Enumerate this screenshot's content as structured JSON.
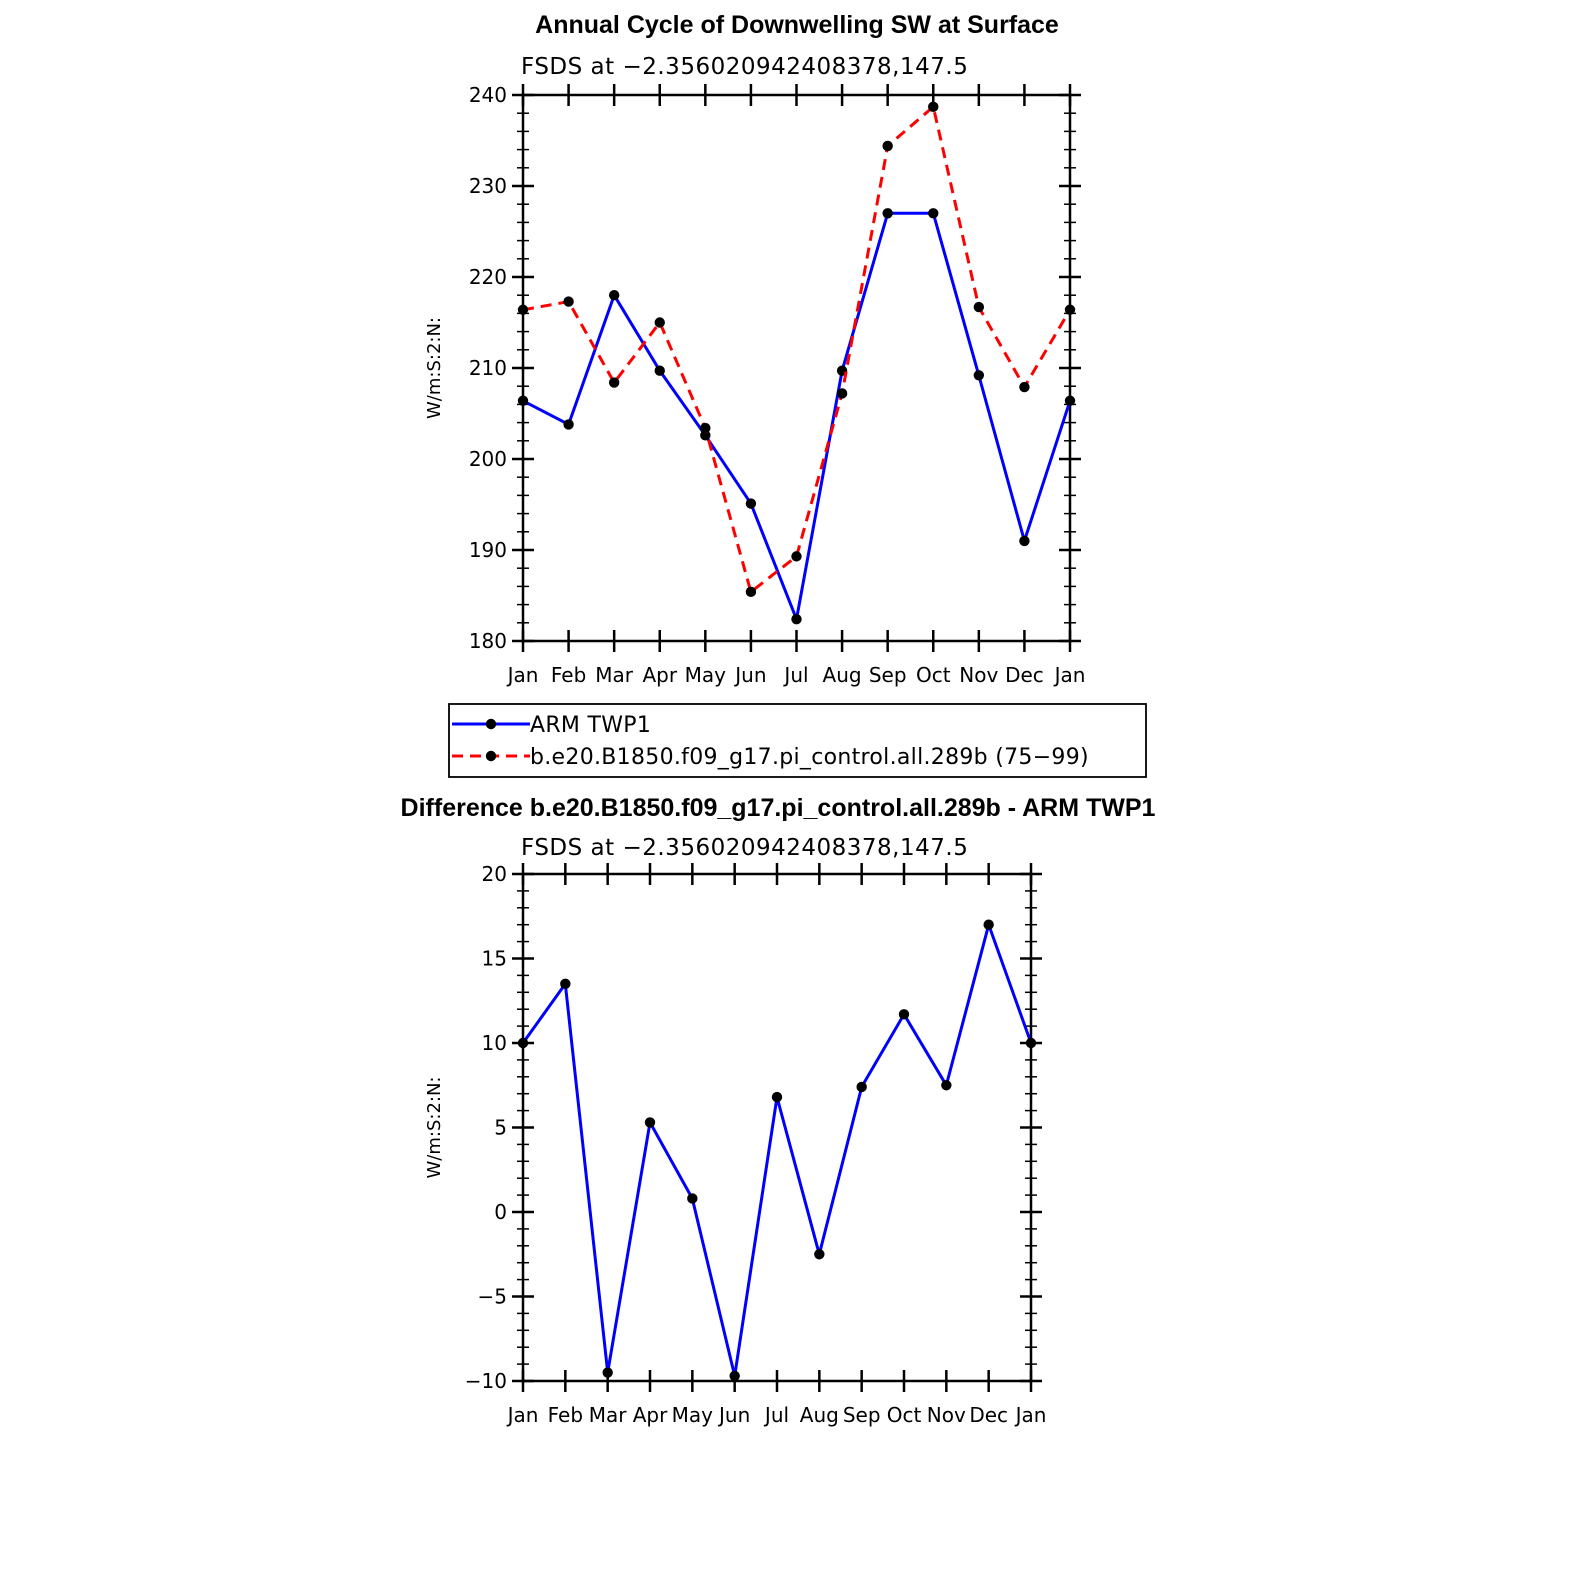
{
  "chart_data": [
    {
      "type": "line",
      "title": "Annual Cycle of Downwelling SW at Surface",
      "subtitle": "FSDS at −2.356020942408378,147.5",
      "xlabel": "",
      "ylabel": "W/m:S:2:N:",
      "categories": [
        "Jan",
        "Feb",
        "Mar",
        "Apr",
        "May",
        "Jun",
        "Jul",
        "Aug",
        "Sep",
        "Oct",
        "Nov",
        "Dec",
        "Jan"
      ],
      "ylim": [
        180,
        240
      ],
      "yticks": [
        180,
        190,
        200,
        210,
        220,
        230,
        240
      ],
      "grid": false,
      "legend_position": "below",
      "series": [
        {
          "name": "ARM TWP1",
          "color": "#0000ff",
          "dash": "solid",
          "values": [
            206.4,
            203.8,
            218.0,
            209.7,
            202.6,
            195.1,
            182.4,
            209.7,
            227.0,
            227.0,
            209.2,
            191.0,
            206.4
          ]
        },
        {
          "name": "b.e20.B1850.f09_g17.pi_control.all.289b (75−99)",
          "color": "#ff0000",
          "dash": "dashed",
          "values": [
            216.4,
            217.3,
            208.4,
            215.0,
            203.4,
            185.4,
            189.3,
            207.2,
            234.4,
            238.7,
            216.7,
            207.9,
            216.4
          ]
        }
      ]
    },
    {
      "type": "line",
      "title": "Difference b.e20.B1850.f09_g17.pi_control.all.289b - ARM TWP1",
      "subtitle": "FSDS at −2.356020942408378,147.5",
      "xlabel": "",
      "ylabel": "W/m:S:2:N:",
      "categories": [
        "Jan",
        "Feb",
        "Mar",
        "Apr",
        "May",
        "Jun",
        "Jul",
        "Aug",
        "Sep",
        "Oct",
        "Nov",
        "Dec",
        "Jan"
      ],
      "ylim": [
        -10,
        20
      ],
      "yticks": [
        -10,
        -5,
        0,
        5,
        10,
        15,
        20
      ],
      "grid": false,
      "series": [
        {
          "color": "#0000ff",
          "dash": "solid",
          "values": [
            10.0,
            13.5,
            -9.5,
            5.3,
            0.8,
            -9.7,
            6.8,
            -2.5,
            7.4,
            11.7,
            7.5,
            17.0,
            10.0
          ]
        }
      ]
    }
  ]
}
